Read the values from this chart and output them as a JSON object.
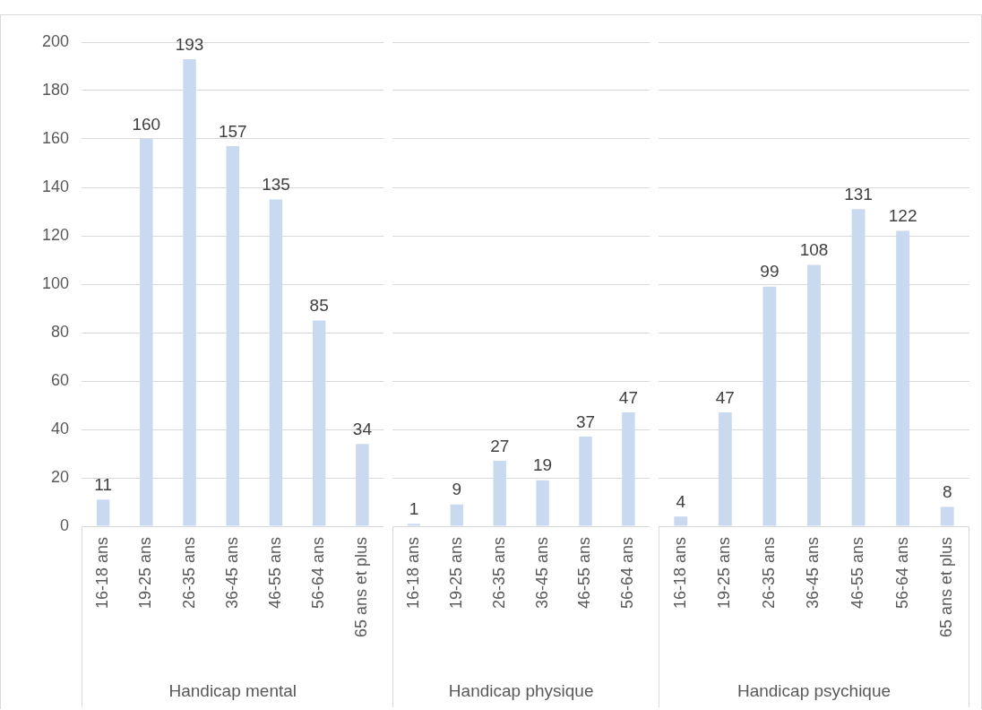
{
  "chart_data": [
    {
      "type": "bar",
      "xlabel": "Handicap mental",
      "categories": [
        "16-18 ans",
        "19-25 ans",
        "26-35 ans",
        "36-45 ans",
        "46-55 ans",
        "56-64 ans",
        "65 ans et plus"
      ],
      "values": [
        11,
        160,
        193,
        157,
        135,
        85,
        34
      ],
      "color": "#c9d9ef",
      "ylim": [
        0,
        200
      ],
      "yticks": [
        0,
        20,
        40,
        60,
        80,
        100,
        120,
        140,
        160,
        180,
        200
      ],
      "grid": "y",
      "data_labels": true
    },
    {
      "type": "bar",
      "xlabel": "Handicap physique",
      "categories": [
        "16-18 ans",
        "19-25 ans",
        "26-35 ans",
        "36-45 ans",
        "46-55 ans",
        "56-64 ans"
      ],
      "values": [
        1,
        9,
        27,
        19,
        37,
        47
      ],
      "color": "#c9d9ef",
      "ylim": [
        0,
        200
      ],
      "yticks": [
        0,
        20,
        40,
        60,
        80,
        100,
        120,
        140,
        160,
        180,
        200
      ],
      "grid": "y",
      "data_labels": true,
      "tick_labels": "x"
    },
    {
      "type": "bar",
      "xlabel": "Handicap psychique",
      "categories": [
        "16-18 ans",
        "19-25 ans",
        "26-35 ans",
        "36-45 ans",
        "46-55 ans",
        "56-64 ans",
        "65 ans et plus"
      ],
      "values": [
        4,
        47,
        99,
        108,
        131,
        122,
        8
      ],
      "color": "#c9d9ef",
      "ylim": [
        0,
        200
      ],
      "yticks": [
        0,
        20,
        40,
        60,
        80,
        100,
        120,
        140,
        160,
        180,
        200
      ],
      "grid": "y",
      "data_labels": true,
      "tick_labels": "x"
    }
  ]
}
